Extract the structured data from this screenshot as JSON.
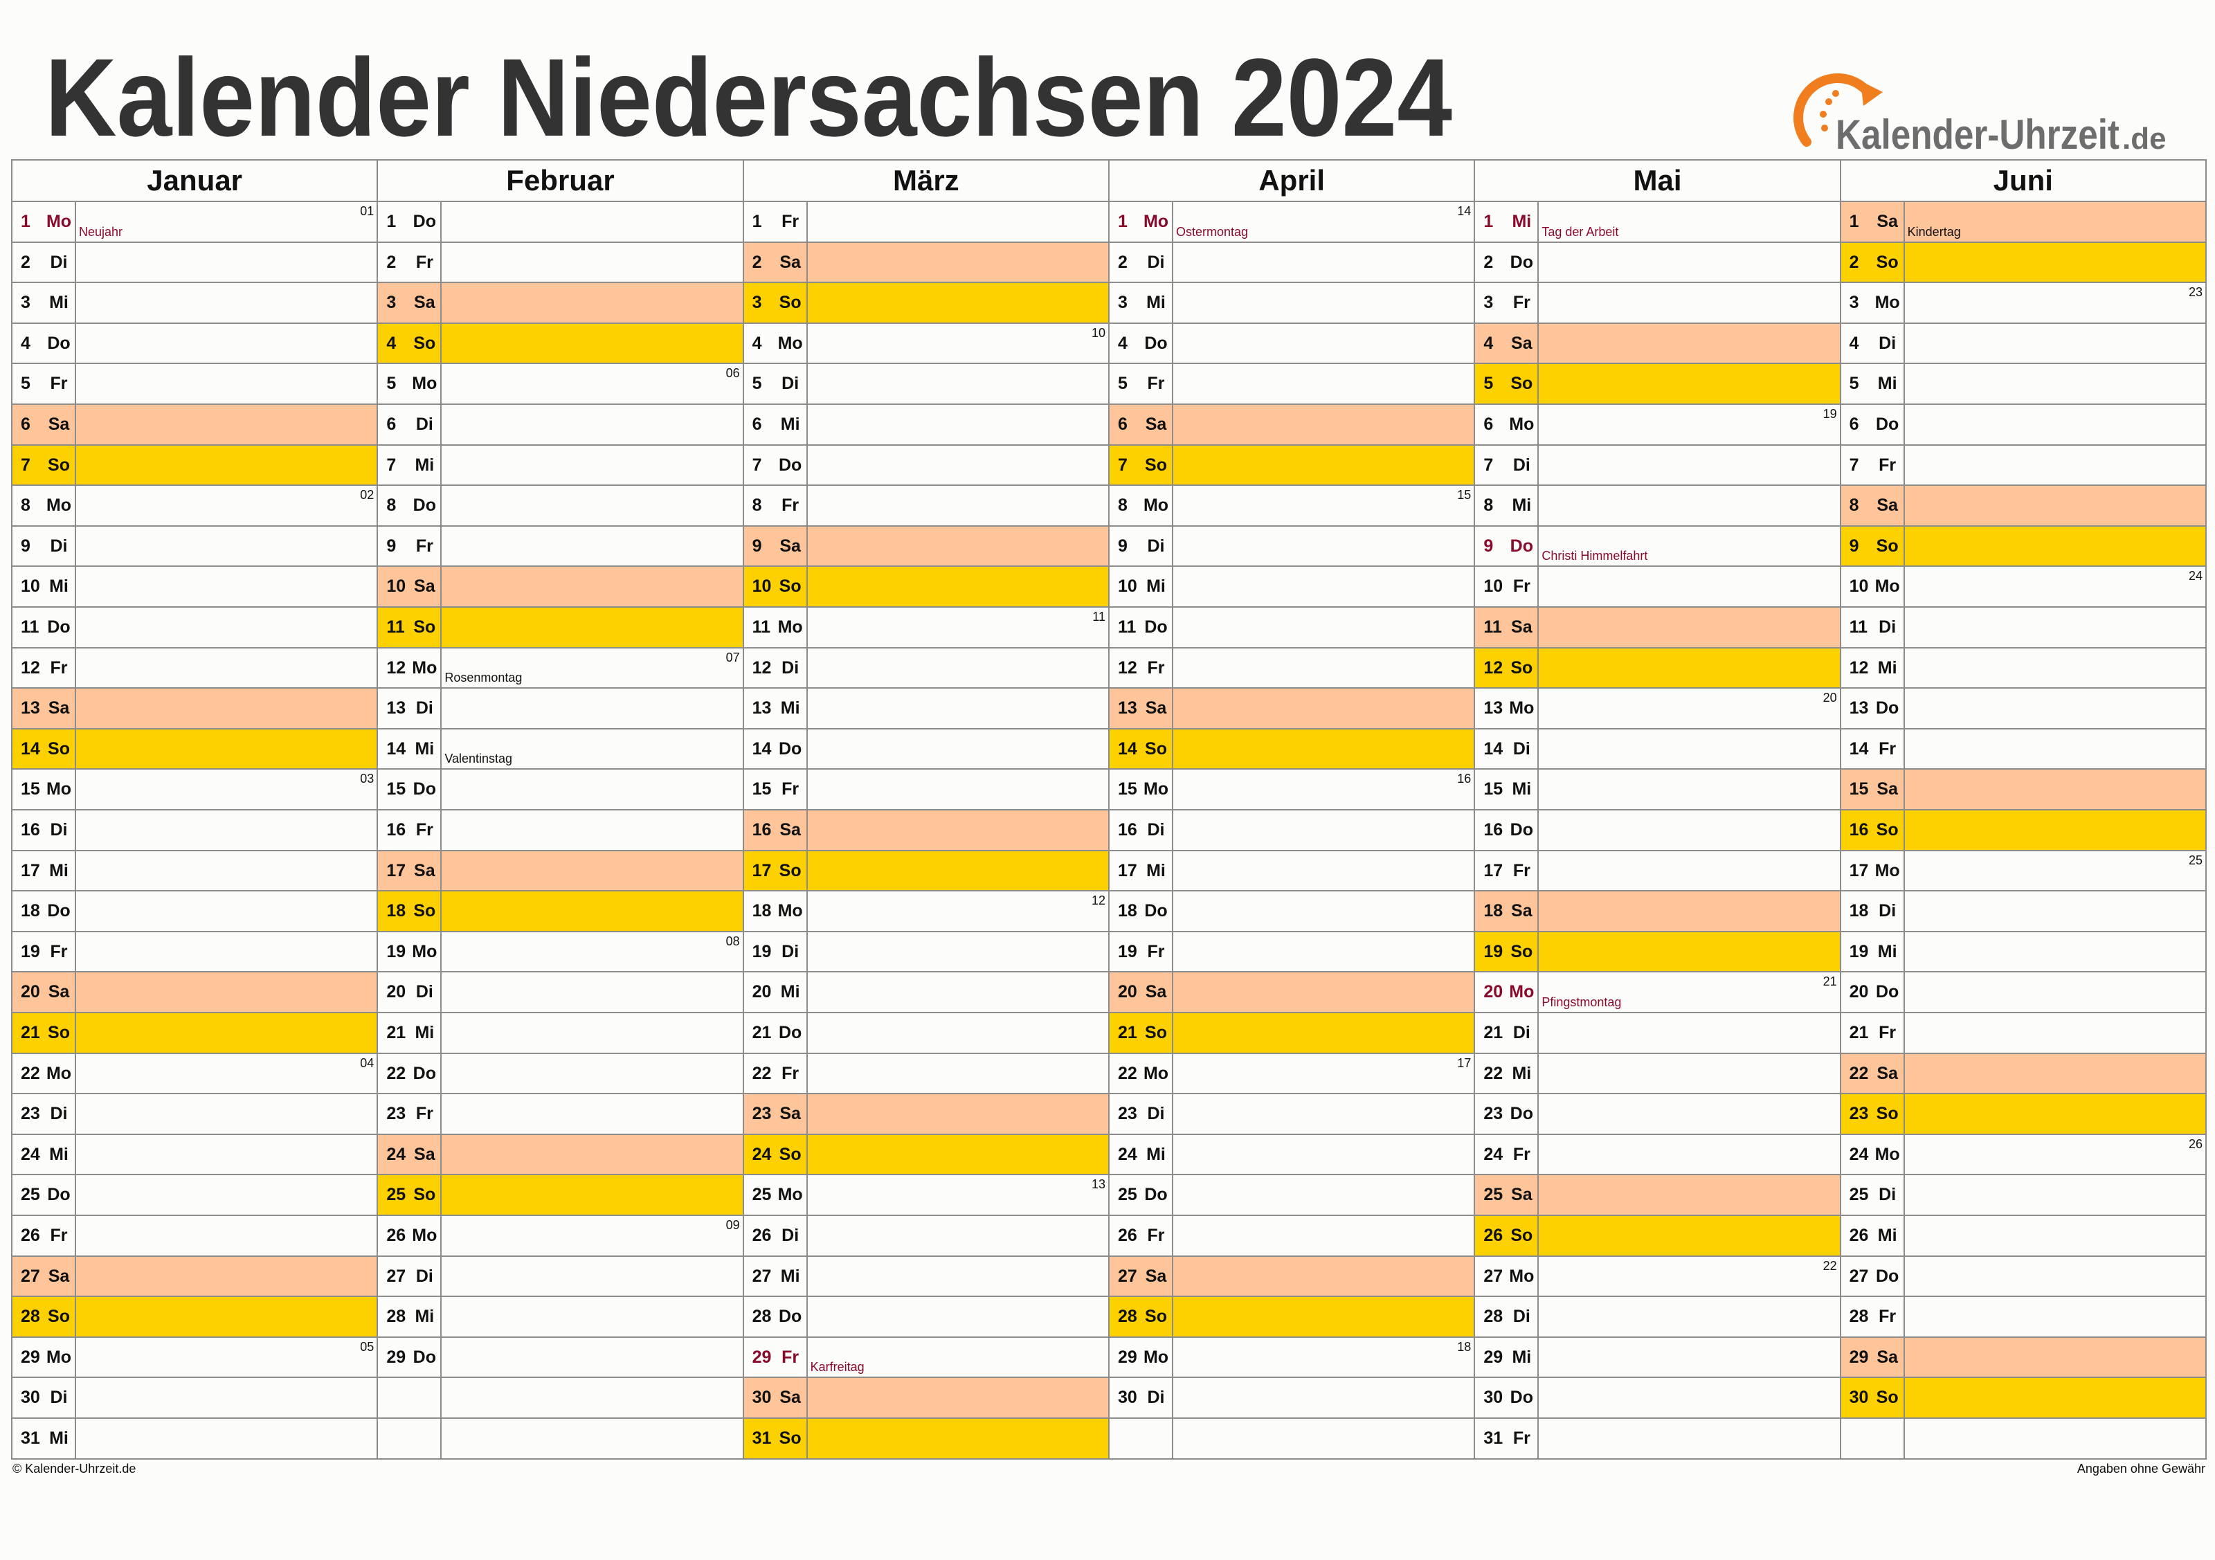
{
  "header": {
    "title": "Kalender Niedersachsen 2024",
    "logo_name": "Kalender-Uhrzeit",
    "logo_tld": ".de"
  },
  "colors": {
    "holiday": "#8a0a2c",
    "text": "#111111",
    "grid": "#8c8c8c",
    "logo": "#6d6d6d",
    "accent": "#f07d1e"
  },
  "months": [
    {
      "name": "Januar",
      "days": [
        {
          "day": 1,
          "weekday": "Mo",
          "week": "01",
          "note": "Neujahr",
          "holiday": true
        },
        {
          "day": 2,
          "weekday": "Di"
        },
        {
          "day": 3,
          "weekday": "Mi"
        },
        {
          "day": 4,
          "weekday": "Do"
        },
        {
          "day": 5,
          "weekday": "Fr"
        },
        {
          "day": 6,
          "weekday": "Sa",
          "color": "#fec49a"
        },
        {
          "day": 7,
          "weekday": "So",
          "color": "#fdd000"
        },
        {
          "day": 8,
          "weekday": "Mo",
          "week": "02"
        },
        {
          "day": 9,
          "weekday": "Di"
        },
        {
          "day": 10,
          "weekday": "Mi"
        },
        {
          "day": 11,
          "weekday": "Do"
        },
        {
          "day": 12,
          "weekday": "Fr"
        },
        {
          "day": 13,
          "weekday": "Sa",
          "color": "#fec49a"
        },
        {
          "day": 14,
          "weekday": "So",
          "color": "#fdd000"
        },
        {
          "day": 15,
          "weekday": "Mo",
          "week": "03"
        },
        {
          "day": 16,
          "weekday": "Di"
        },
        {
          "day": 17,
          "weekday": "Mi"
        },
        {
          "day": 18,
          "weekday": "Do"
        },
        {
          "day": 19,
          "weekday": "Fr"
        },
        {
          "day": 20,
          "weekday": "Sa",
          "color": "#fec49a"
        },
        {
          "day": 21,
          "weekday": "So",
          "color": "#fdd000"
        },
        {
          "day": 22,
          "weekday": "Mo",
          "week": "04"
        },
        {
          "day": 23,
          "weekday": "Di"
        },
        {
          "day": 24,
          "weekday": "Mi"
        },
        {
          "day": 25,
          "weekday": "Do"
        },
        {
          "day": 26,
          "weekday": "Fr"
        },
        {
          "day": 27,
          "weekday": "Sa",
          "color": "#fec49a"
        },
        {
          "day": 28,
          "weekday": "So",
          "color": "#fdd000"
        },
        {
          "day": 29,
          "weekday": "Mo",
          "week": "05"
        },
        {
          "day": 30,
          "weekday": "Di"
        },
        {
          "day": 31,
          "weekday": "Mi"
        }
      ]
    },
    {
      "name": "Februar",
      "days": [
        {
          "day": 1,
          "weekday": "Do"
        },
        {
          "day": 2,
          "weekday": "Fr"
        },
        {
          "day": 3,
          "weekday": "Sa",
          "color": "#fec49a"
        },
        {
          "day": 4,
          "weekday": "So",
          "color": "#fdd000"
        },
        {
          "day": 5,
          "weekday": "Mo",
          "week": "06"
        },
        {
          "day": 6,
          "weekday": "Di"
        },
        {
          "day": 7,
          "weekday": "Mi"
        },
        {
          "day": 8,
          "weekday": "Do"
        },
        {
          "day": 9,
          "weekday": "Fr"
        },
        {
          "day": 10,
          "weekday": "Sa",
          "color": "#fec49a"
        },
        {
          "day": 11,
          "weekday": "So",
          "color": "#fdd000"
        },
        {
          "day": 12,
          "weekday": "Mo",
          "week": "07",
          "note": "Rosenmontag"
        },
        {
          "day": 13,
          "weekday": "Di"
        },
        {
          "day": 14,
          "weekday": "Mi",
          "note": "Valentinstag"
        },
        {
          "day": 15,
          "weekday": "Do"
        },
        {
          "day": 16,
          "weekday": "Fr"
        },
        {
          "day": 17,
          "weekday": "Sa",
          "color": "#fec49a"
        },
        {
          "day": 18,
          "weekday": "So",
          "color": "#fdd000"
        },
        {
          "day": 19,
          "weekday": "Mo",
          "week": "08"
        },
        {
          "day": 20,
          "weekday": "Di"
        },
        {
          "day": 21,
          "weekday": "Mi"
        },
        {
          "day": 22,
          "weekday": "Do"
        },
        {
          "day": 23,
          "weekday": "Fr"
        },
        {
          "day": 24,
          "weekday": "Sa",
          "color": "#fec49a"
        },
        {
          "day": 25,
          "weekday": "So",
          "color": "#fdd000"
        },
        {
          "day": 26,
          "weekday": "Mo",
          "week": "09"
        },
        {
          "day": 27,
          "weekday": "Di"
        },
        {
          "day": 28,
          "weekday": "Mi"
        },
        {
          "day": 29,
          "weekday": "Do"
        }
      ]
    },
    {
      "name": "März",
      "days": [
        {
          "day": 1,
          "weekday": "Fr"
        },
        {
          "day": 2,
          "weekday": "Sa",
          "color": "#fec49a"
        },
        {
          "day": 3,
          "weekday": "So",
          "color": "#fdd000"
        },
        {
          "day": 4,
          "weekday": "Mo",
          "week": "10"
        },
        {
          "day": 5,
          "weekday": "Di"
        },
        {
          "day": 6,
          "weekday": "Mi"
        },
        {
          "day": 7,
          "weekday": "Do"
        },
        {
          "day": 8,
          "weekday": "Fr"
        },
        {
          "day": 9,
          "weekday": "Sa",
          "color": "#fec49a"
        },
        {
          "day": 10,
          "weekday": "So",
          "color": "#fdd000"
        },
        {
          "day": 11,
          "weekday": "Mo",
          "week": "11"
        },
        {
          "day": 12,
          "weekday": "Di"
        },
        {
          "day": 13,
          "weekday": "Mi"
        },
        {
          "day": 14,
          "weekday": "Do"
        },
        {
          "day": 15,
          "weekday": "Fr"
        },
        {
          "day": 16,
          "weekday": "Sa",
          "color": "#fec49a"
        },
        {
          "day": 17,
          "weekday": "So",
          "color": "#fdd000"
        },
        {
          "day": 18,
          "weekday": "Mo",
          "week": "12"
        },
        {
          "day": 19,
          "weekday": "Di"
        },
        {
          "day": 20,
          "weekday": "Mi"
        },
        {
          "day": 21,
          "weekday": "Do"
        },
        {
          "day": 22,
          "weekday": "Fr"
        },
        {
          "day": 23,
          "weekday": "Sa",
          "color": "#fec49a"
        },
        {
          "day": 24,
          "weekday": "So",
          "color": "#fdd000"
        },
        {
          "day": 25,
          "weekday": "Mo",
          "week": "13"
        },
        {
          "day": 26,
          "weekday": "Di"
        },
        {
          "day": 27,
          "weekday": "Mi"
        },
        {
          "day": 28,
          "weekday": "Do"
        },
        {
          "day": 29,
          "weekday": "Fr",
          "note": "Karfreitag",
          "holiday": true
        },
        {
          "day": 30,
          "weekday": "Sa",
          "color": "#fec49a"
        },
        {
          "day": 31,
          "weekday": "So",
          "color": "#fdd000"
        }
      ]
    },
    {
      "name": "April",
      "days": [
        {
          "day": 1,
          "weekday": "Mo",
          "week": "14",
          "note": "Ostermontag",
          "holiday": true
        },
        {
          "day": 2,
          "weekday": "Di"
        },
        {
          "day": 3,
          "weekday": "Mi"
        },
        {
          "day": 4,
          "weekday": "Do"
        },
        {
          "day": 5,
          "weekday": "Fr"
        },
        {
          "day": 6,
          "weekday": "Sa",
          "color": "#fec49a"
        },
        {
          "day": 7,
          "weekday": "So",
          "color": "#fdd000"
        },
        {
          "day": 8,
          "weekday": "Mo",
          "week": "15"
        },
        {
          "day": 9,
          "weekday": "Di"
        },
        {
          "day": 10,
          "weekday": "Mi"
        },
        {
          "day": 11,
          "weekday": "Do"
        },
        {
          "day": 12,
          "weekday": "Fr"
        },
        {
          "day": 13,
          "weekday": "Sa",
          "color": "#fec49a"
        },
        {
          "day": 14,
          "weekday": "So",
          "color": "#fdd000"
        },
        {
          "day": 15,
          "weekday": "Mo",
          "week": "16"
        },
        {
          "day": 16,
          "weekday": "Di"
        },
        {
          "day": 17,
          "weekday": "Mi"
        },
        {
          "day": 18,
          "weekday": "Do"
        },
        {
          "day": 19,
          "weekday": "Fr"
        },
        {
          "day": 20,
          "weekday": "Sa",
          "color": "#fec49a"
        },
        {
          "day": 21,
          "weekday": "So",
          "color": "#fdd000"
        },
        {
          "day": 22,
          "weekday": "Mo",
          "week": "17"
        },
        {
          "day": 23,
          "weekday": "Di"
        },
        {
          "day": 24,
          "weekday": "Mi"
        },
        {
          "day": 25,
          "weekday": "Do"
        },
        {
          "day": 26,
          "weekday": "Fr"
        },
        {
          "day": 27,
          "weekday": "Sa",
          "color": "#fec49a"
        },
        {
          "day": 28,
          "weekday": "So",
          "color": "#fdd000"
        },
        {
          "day": 29,
          "weekday": "Mo",
          "week": "18"
        },
        {
          "day": 30,
          "weekday": "Di"
        }
      ]
    },
    {
      "name": "Mai",
      "days": [
        {
          "day": 1,
          "weekday": "Mi",
          "note": "Tag der Arbeit",
          "holiday": true
        },
        {
          "day": 2,
          "weekday": "Do"
        },
        {
          "day": 3,
          "weekday": "Fr"
        },
        {
          "day": 4,
          "weekday": "Sa",
          "color": "#fec49a"
        },
        {
          "day": 5,
          "weekday": "So",
          "color": "#fdd000"
        },
        {
          "day": 6,
          "weekday": "Mo",
          "week": "19"
        },
        {
          "day": 7,
          "weekday": "Di"
        },
        {
          "day": 8,
          "weekday": "Mi"
        },
        {
          "day": 9,
          "weekday": "Do",
          "note": "Christi Himmelfahrt",
          "holiday": true
        },
        {
          "day": 10,
          "weekday": "Fr"
        },
        {
          "day": 11,
          "weekday": "Sa",
          "color": "#fec49a"
        },
        {
          "day": 12,
          "weekday": "So",
          "color": "#fdd000"
        },
        {
          "day": 13,
          "weekday": "Mo",
          "week": "20"
        },
        {
          "day": 14,
          "weekday": "Di"
        },
        {
          "day": 15,
          "weekday": "Mi"
        },
        {
          "day": 16,
          "weekday": "Do"
        },
        {
          "day": 17,
          "weekday": "Fr"
        },
        {
          "day": 18,
          "weekday": "Sa",
          "color": "#fec49a"
        },
        {
          "day": 19,
          "weekday": "So",
          "color": "#fdd000"
        },
        {
          "day": 20,
          "weekday": "Mo",
          "week": "21",
          "note": "Pfingstmontag",
          "holiday": true
        },
        {
          "day": 21,
          "weekday": "Di"
        },
        {
          "day": 22,
          "weekday": "Mi"
        },
        {
          "day": 23,
          "weekday": "Do"
        },
        {
          "day": 24,
          "weekday": "Fr"
        },
        {
          "day": 25,
          "weekday": "Sa",
          "color": "#fec49a"
        },
        {
          "day": 26,
          "weekday": "So",
          "color": "#fdd000"
        },
        {
          "day": 27,
          "weekday": "Mo",
          "week": "22"
        },
        {
          "day": 28,
          "weekday": "Di"
        },
        {
          "day": 29,
          "weekday": "Mi"
        },
        {
          "day": 30,
          "weekday": "Do"
        },
        {
          "day": 31,
          "weekday": "Fr"
        }
      ]
    },
    {
      "name": "Juni",
      "days": [
        {
          "day": 1,
          "weekday": "Sa",
          "color": "#fec49a",
          "note": "Kindertag"
        },
        {
          "day": 2,
          "weekday": "So",
          "color": "#fdd000"
        },
        {
          "day": 3,
          "weekday": "Mo",
          "week": "23"
        },
        {
          "day": 4,
          "weekday": "Di"
        },
        {
          "day": 5,
          "weekday": "Mi"
        },
        {
          "day": 6,
          "weekday": "Do"
        },
        {
          "day": 7,
          "weekday": "Fr"
        },
        {
          "day": 8,
          "weekday": "Sa",
          "color": "#fec49a"
        },
        {
          "day": 9,
          "weekday": "So",
          "color": "#fdd000"
        },
        {
          "day": 10,
          "weekday": "Mo",
          "week": "24"
        },
        {
          "day": 11,
          "weekday": "Di"
        },
        {
          "day": 12,
          "weekday": "Mi"
        },
        {
          "day": 13,
          "weekday": "Do"
        },
        {
          "day": 14,
          "weekday": "Fr"
        },
        {
          "day": 15,
          "weekday": "Sa",
          "color": "#fec49a"
        },
        {
          "day": 16,
          "weekday": "So",
          "color": "#fdd000"
        },
        {
          "day": 17,
          "weekday": "Mo",
          "week": "25"
        },
        {
          "day": 18,
          "weekday": "Di"
        },
        {
          "day": 19,
          "weekday": "Mi"
        },
        {
          "day": 20,
          "weekday": "Do"
        },
        {
          "day": 21,
          "weekday": "Fr"
        },
        {
          "day": 22,
          "weekday": "Sa",
          "color": "#fec49a"
        },
        {
          "day": 23,
          "weekday": "So",
          "color": "#fdd000"
        },
        {
          "day": 24,
          "weekday": "Mo",
          "week": "26"
        },
        {
          "day": 25,
          "weekday": "Di"
        },
        {
          "day": 26,
          "weekday": "Mi"
        },
        {
          "day": 27,
          "weekday": "Do"
        },
        {
          "day": 28,
          "weekday": "Fr"
        },
        {
          "day": 29,
          "weekday": "Sa",
          "color": "#fec49a"
        },
        {
          "day": 30,
          "weekday": "So",
          "color": "#fdd000"
        }
      ]
    }
  ],
  "footer": {
    "left": "© Kalender-Uhrzeit.de",
    "right": "Angaben ohne Gewähr"
  }
}
